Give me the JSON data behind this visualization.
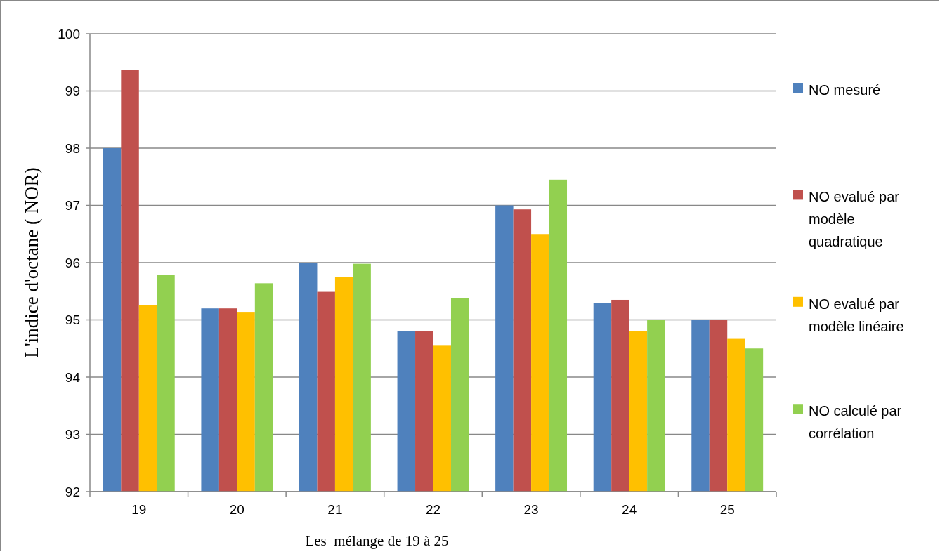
{
  "chart_data": {
    "type": "bar",
    "xlabel": "Les  mélange de 19 à 25",
    "ylabel": "L'indice d'octane ( NOR)",
    "categories": [
      "19",
      "20",
      "21",
      "22",
      "23",
      "24",
      "25"
    ],
    "series": [
      {
        "name": "NO mesuré",
        "color": "#4f81bd",
        "values": [
          98,
          95.2,
          96,
          94.8,
          97,
          95.29,
          95
        ]
      },
      {
        "name": "NO evalué par modèle quadratique",
        "color": "#c0504d",
        "values": [
          99.37,
          95.2,
          95.49,
          94.8,
          96.93,
          95.35,
          95
        ]
      },
      {
        "name": "NO evalué par modèle linéaire",
        "color": "#ffc000",
        "values": [
          95.26,
          95.14,
          95.75,
          94.56,
          96.5,
          94.8,
          94.68
        ]
      },
      {
        "name": "NO calculé par corrélation",
        "color": "#92d050",
        "values": [
          95.78,
          95.64,
          95.98,
          95.38,
          97.45,
          95,
          94.5
        ]
      }
    ],
    "ylim": [
      92,
      100
    ],
    "yticks": [
      92,
      93,
      94,
      95,
      96,
      97,
      98,
      99,
      100
    ],
    "grid": "y",
    "legend": "right"
  }
}
